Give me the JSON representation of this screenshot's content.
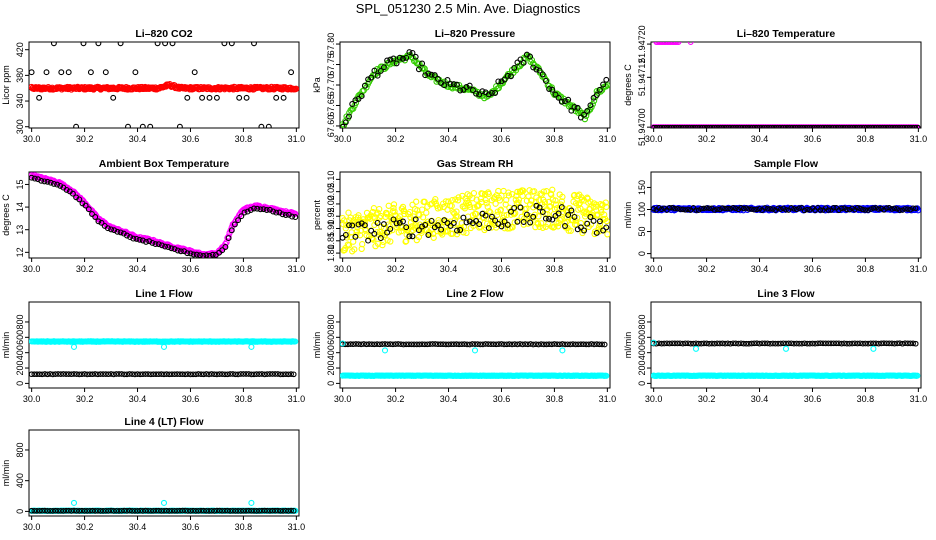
{
  "figure_title": "SPL_051230  2.5 Min. Ave. Diagnostics",
  "chart_data": [
    {
      "id": "co2",
      "type": "scatter",
      "title": "Li–820 CO2",
      "ylabel": "Licor ppm",
      "xlim": [
        29.99,
        31.01
      ],
      "ylim": [
        298,
        432
      ],
      "xticks": [
        "30.0",
        "30.2",
        "30.4",
        "30.6",
        "30.8",
        "31.0"
      ],
      "yticks": [
        {
          "v": 300,
          "l": "300"
        },
        {
          "v": 340,
          "l": "340"
        },
        {
          "v": 380,
          "l": "380"
        },
        {
          "v": 420,
          "l": "420"
        }
      ],
      "series": [
        {
          "name": "raw",
          "color": "#000000",
          "pattern": "levels",
          "levels": [
            300,
            345,
            385,
            430
          ],
          "spacing": 0.028,
          "r": 2.4
        },
        {
          "name": "average",
          "color": "#ff0000",
          "pattern": "flat",
          "base": 360,
          "noise": 2,
          "bump": {
            "x": 30.52,
            "h": 5
          },
          "step": 0.003,
          "r": 2.6
        }
      ]
    },
    {
      "id": "pressure",
      "type": "scatter",
      "title": "Li–820 Pressure",
      "ylabel": "kPa",
      "xlim": [
        29.99,
        31.01
      ],
      "ylim": [
        67.595,
        67.805
      ],
      "xticks": [
        "30.0",
        "30.2",
        "30.4",
        "30.6",
        "30.8",
        "31.0"
      ],
      "yticks": [
        {
          "v": 67.6,
          "l": "67.60"
        },
        {
          "v": 67.65,
          "l": "67.65"
        },
        {
          "v": 67.7,
          "l": "67.70"
        },
        {
          "v": 67.75,
          "l": "67.75"
        },
        {
          "v": 67.8,
          "l": "67.80"
        }
      ],
      "series": [
        {
          "name": "average",
          "color": "#33cc00",
          "pattern": "curve",
          "curve": [
            [
              30.0,
              67.6
            ],
            [
              30.05,
              67.66
            ],
            [
              30.12,
              67.73
            ],
            [
              30.2,
              67.76
            ],
            [
              30.26,
              67.77
            ],
            [
              30.33,
              67.72
            ],
            [
              30.4,
              67.7
            ],
            [
              30.47,
              67.69
            ],
            [
              30.55,
              67.67
            ],
            [
              30.62,
              67.72
            ],
            [
              30.7,
              67.77
            ],
            [
              30.76,
              67.72
            ],
            [
              30.8,
              67.68
            ],
            [
              30.86,
              67.65
            ],
            [
              30.92,
              67.62
            ],
            [
              30.96,
              67.68
            ],
            [
              31.0,
              67.7
            ]
          ],
          "noise": 0.006,
          "step": 0.005,
          "r": 2.6
        },
        {
          "name": "raw",
          "color": "#000000",
          "pattern": "curve",
          "curve": [
            [
              30.0,
              67.6
            ],
            [
              30.05,
              67.66
            ],
            [
              30.12,
              67.73
            ],
            [
              30.2,
              67.76
            ],
            [
              30.26,
              67.77
            ],
            [
              30.33,
              67.72
            ],
            [
              30.4,
              67.7
            ],
            [
              30.47,
              67.69
            ],
            [
              30.55,
              67.67
            ],
            [
              30.62,
              67.72
            ],
            [
              30.7,
              67.77
            ],
            [
              30.76,
              67.72
            ],
            [
              30.8,
              67.68
            ],
            [
              30.86,
              67.65
            ],
            [
              30.92,
              67.62
            ],
            [
              30.96,
              67.68
            ],
            [
              31.0,
              67.72
            ]
          ],
          "noise": 0.012,
          "step": 0.012,
          "r": 2.4
        }
      ]
    },
    {
      "id": "temperature",
      "type": "scatter",
      "title": "Li–820 Temperature",
      "ylabel": "degrees C",
      "xlim": [
        29.99,
        31.01
      ],
      "ylim": [
        51.946998,
        51.947205
      ],
      "xticks": [
        "30.0",
        "30.2",
        "30.4",
        "30.6",
        "30.8",
        "31.0"
      ],
      "yticks": [
        {
          "v": 51.947,
          "l": "51.94700"
        },
        {
          "v": 51.94712,
          "l": "51.94712"
        },
        {
          "v": 51.9472,
          "l": "51.94720"
        }
      ],
      "series": [
        {
          "name": "average",
          "color": "#ff00ff",
          "pattern": "flat",
          "base": 51.947,
          "noise": 0,
          "step": 0.004,
          "r": 2.4
        },
        {
          "name": "raw",
          "color": "#000000",
          "pattern": "flat",
          "base": 51.947,
          "noise": 0,
          "step": 0.009,
          "r": 1.8
        },
        {
          "name": "outliers",
          "color": "#ff00ff",
          "pattern": "range",
          "x0": 30.01,
          "x1": 30.1,
          "base": 51.947205,
          "step": 0.006,
          "r": 2.4
        },
        {
          "name": "outlier-2",
          "color": "#ff00ff",
          "pattern": "range",
          "x0": 30.14,
          "x1": 30.15,
          "base": 51.947205,
          "step": 0.01,
          "r": 2.4
        }
      ]
    },
    {
      "id": "box-temp",
      "type": "scatter",
      "title": "Ambient Box Temperature",
      "ylabel": "degrees C",
      "xlim": [
        29.99,
        31.01
      ],
      "ylim": [
        11.75,
        15.55
      ],
      "xticks": [
        "30.0",
        "30.2",
        "30.4",
        "30.6",
        "30.8",
        "31.0"
      ],
      "yticks": [
        {
          "v": 12,
          "l": "12"
        },
        {
          "v": 13,
          "l": "13"
        },
        {
          "v": 14,
          "l": "14"
        },
        {
          "v": 15,
          "l": "15"
        }
      ],
      "series": [
        {
          "name": "average",
          "color": "#ff00ff",
          "pattern": "curve",
          "curve": [
            [
              30.0,
              15.4
            ],
            [
              30.05,
              15.25
            ],
            [
              30.1,
              15.1
            ],
            [
              30.15,
              14.75
            ],
            [
              30.2,
              14.2
            ],
            [
              30.25,
              13.5
            ],
            [
              30.3,
              13.1
            ],
            [
              30.35,
              12.9
            ],
            [
              30.4,
              12.65
            ],
            [
              30.45,
              12.55
            ],
            [
              30.5,
              12.35
            ],
            [
              30.55,
              12.2
            ],
            [
              30.6,
              12.05
            ],
            [
              30.65,
              11.9
            ],
            [
              30.7,
              11.95
            ],
            [
              30.73,
              12.3
            ],
            [
              30.76,
              13.2
            ],
            [
              30.8,
              13.9
            ],
            [
              30.85,
              14.05
            ],
            [
              30.9,
              13.95
            ],
            [
              30.95,
              13.8
            ],
            [
              31.0,
              13.7
            ]
          ],
          "noise": 0.04,
          "step": 0.004,
          "r": 2.6
        },
        {
          "name": "raw",
          "color": "#000000",
          "pattern": "curve",
          "curve": [
            [
              30.0,
              15.3
            ],
            [
              30.05,
              15.15
            ],
            [
              30.1,
              15.0
            ],
            [
              30.15,
              14.65
            ],
            [
              30.2,
              14.1
            ],
            [
              30.25,
              13.4
            ],
            [
              30.3,
              13.0
            ],
            [
              30.35,
              12.8
            ],
            [
              30.4,
              12.55
            ],
            [
              30.45,
              12.45
            ],
            [
              30.5,
              12.25
            ],
            [
              30.55,
              12.1
            ],
            [
              30.6,
              11.95
            ],
            [
              30.65,
              11.85
            ],
            [
              30.7,
              11.9
            ],
            [
              30.73,
              12.2
            ],
            [
              30.76,
              13.1
            ],
            [
              30.8,
              13.75
            ],
            [
              30.85,
              13.95
            ],
            [
              30.9,
              13.85
            ],
            [
              30.95,
              13.7
            ],
            [
              31.0,
              13.55
            ]
          ],
          "noise": 0.03,
          "step": 0.012,
          "r": 2.4
        }
      ]
    },
    {
      "id": "rh",
      "type": "scatter",
      "title": "Gas Stream RH",
      "ylabel": "percent",
      "xlim": [
        29.99,
        31.01
      ],
      "ylim": [
        1.78,
        2.13
      ],
      "xticks": [
        "30.0",
        "30.2",
        "30.4",
        "30.6",
        "30.8",
        "31.0"
      ],
      "yticks": [
        {
          "v": 1.8,
          "l": "1.80"
        },
        {
          "v": 1.85,
          "l": "1.85"
        },
        {
          "v": 1.9,
          "l": "1.90"
        },
        {
          "v": 1.95,
          "l": "1.95"
        },
        {
          "v": 2.0,
          "l": "2.00"
        },
        {
          "v": 2.05,
          "l": "2.05"
        },
        {
          "v": 2.1,
          "l": "2.10"
        }
      ],
      "series": [
        {
          "name": "average",
          "color": "#ffff00",
          "pattern": "curve",
          "curve": [
            [
              30.0,
              1.88
            ],
            [
              30.2,
              1.92
            ],
            [
              30.4,
              1.95
            ],
            [
              30.6,
              1.98
            ],
            [
              30.8,
              1.98
            ],
            [
              31.0,
              1.94
            ]
          ],
          "noise": 0.08,
          "step": 0.002,
          "r": 2.6
        },
        {
          "name": "raw",
          "color": "#000000",
          "pattern": "curve",
          "curve": [
            [
              30.0,
              1.88
            ],
            [
              30.2,
              1.9
            ],
            [
              30.4,
              1.92
            ],
            [
              30.6,
              1.94
            ],
            [
              30.8,
              1.96
            ],
            [
              31.0,
              1.9
            ]
          ],
          "noise": 0.04,
          "step": 0.012,
          "r": 2.4
        }
      ]
    },
    {
      "id": "sample-flow",
      "type": "scatter",
      "title": "Sample Flow",
      "ylabel": "ml/min",
      "xlim": [
        29.99,
        31.01
      ],
      "ylim": [
        -10,
        185
      ],
      "xticks": [
        "30.0",
        "30.2",
        "30.4",
        "30.6",
        "30.8",
        "31.0"
      ],
      "yticks": [
        {
          "v": 0,
          "l": "0"
        },
        {
          "v": 50,
          "l": "50"
        },
        {
          "v": 100,
          "l": "100"
        },
        {
          "v": 150,
          "l": "150"
        }
      ],
      "series": [
        {
          "name": "average",
          "color": "#0000ff",
          "pattern": "flat",
          "base": 101,
          "noise": 3,
          "step": 0.003,
          "r": 2.5
        },
        {
          "name": "raw",
          "color": "#000000",
          "pattern": "flat",
          "base": 101,
          "noise": 3,
          "step": 0.01,
          "r": 2.2
        }
      ]
    },
    {
      "id": "line1",
      "type": "scatter",
      "title": "Line 1 Flow",
      "ylabel": "ml/min",
      "xlim": [
        29.99,
        31.01
      ],
      "ylim": [
        -60,
        1060
      ],
      "xticks": [
        "30.0",
        "30.2",
        "30.4",
        "30.6",
        "30.8",
        "31.0"
      ],
      "yticks": [
        {
          "v": 0,
          "l": "0"
        },
        {
          "v": 200,
          "l": "200"
        },
        {
          "v": 400,
          "l": "400"
        },
        {
          "v": 600,
          "l": "600"
        },
        {
          "v": 800,
          "l": "800"
        }
      ],
      "series": [
        {
          "name": "average",
          "color": "#00ffff",
          "pattern": "flat",
          "base": 545,
          "noise": 4,
          "step": 0.004,
          "r": 2.5
        },
        {
          "name": "raw",
          "color": "#000000",
          "pattern": "flat",
          "base": 120,
          "noise": 3,
          "step": 0.01,
          "r": 2.3
        },
        {
          "name": "dips",
          "color": "#00ffff",
          "pattern": "points",
          "points": [
            [
              30.16,
              475
            ],
            [
              30.5,
              475
            ],
            [
              30.83,
              475
            ]
          ],
          "r": 2.5
        }
      ]
    },
    {
      "id": "line2",
      "type": "scatter",
      "title": "Line 2 Flow",
      "ylabel": "ml/min",
      "xlim": [
        29.99,
        31.01
      ],
      "ylim": [
        -60,
        1060
      ],
      "xticks": [
        "30.0",
        "30.2",
        "30.4",
        "30.6",
        "30.8",
        "31.0"
      ],
      "yticks": [
        {
          "v": 0,
          "l": "0"
        },
        {
          "v": 200,
          "l": "200"
        },
        {
          "v": 400,
          "l": "400"
        },
        {
          "v": 600,
          "l": "600"
        },
        {
          "v": 800,
          "l": "800"
        }
      ],
      "series": [
        {
          "name": "average",
          "color": "#00ffff",
          "pattern": "flat",
          "base": 100,
          "noise": 3,
          "step": 0.004,
          "r": 2.5
        },
        {
          "name": "raw",
          "color": "#000000",
          "pattern": "flat",
          "base": 510,
          "noise": 3,
          "step": 0.01,
          "r": 2.3
        },
        {
          "name": "dips",
          "color": "#00ffff",
          "pattern": "points",
          "points": [
            [
              30.0,
              520
            ],
            [
              30.16,
              430
            ],
            [
              30.5,
              430
            ],
            [
              30.83,
              430
            ]
          ],
          "r": 2.5
        }
      ]
    },
    {
      "id": "line3",
      "type": "scatter",
      "title": "Line 3 Flow",
      "ylabel": "ml/min",
      "xlim": [
        29.99,
        31.01
      ],
      "ylim": [
        -60,
        1060
      ],
      "xticks": [
        "30.0",
        "30.2",
        "30.4",
        "30.6",
        "30.8",
        "31.0"
      ],
      "yticks": [
        {
          "v": 0,
          "l": "0"
        },
        {
          "v": 200,
          "l": "200"
        },
        {
          "v": 400,
          "l": "400"
        },
        {
          "v": 600,
          "l": "600"
        },
        {
          "v": 800,
          "l": "800"
        }
      ],
      "series": [
        {
          "name": "average",
          "color": "#00ffff",
          "pattern": "flat",
          "base": 100,
          "noise": 3,
          "step": 0.004,
          "r": 2.5
        },
        {
          "name": "raw",
          "color": "#000000",
          "pattern": "flat",
          "base": 520,
          "noise": 3,
          "step": 0.01,
          "r": 2.3
        },
        {
          "name": "dips",
          "color": "#00ffff",
          "pattern": "points",
          "points": [
            [
              30.0,
              530
            ],
            [
              30.16,
              450
            ],
            [
              30.5,
              450
            ],
            [
              30.83,
              450
            ]
          ],
          "r": 2.5
        }
      ]
    },
    {
      "id": "line4",
      "type": "scatter",
      "title": "Line 4 (LT) Flow",
      "ylabel": "ml/min",
      "xlim": [
        29.99,
        31.01
      ],
      "ylim": [
        -60,
        1060
      ],
      "xticks": [
        "30.0",
        "30.2",
        "30.4",
        "30.6",
        "30.8",
        "31.0"
      ],
      "yticks": [
        {
          "v": 0,
          "l": "0"
        },
        {
          "v": 400,
          "l": "400"
        },
        {
          "v": 800,
          "l": "800"
        }
      ],
      "series": [
        {
          "name": "average",
          "color": "#00ffff",
          "pattern": "flat",
          "base": 8,
          "noise": 2,
          "step": 0.004,
          "r": 2.5
        },
        {
          "name": "raw",
          "color": "#000000",
          "pattern": "flat",
          "base": 8,
          "noise": 2,
          "step": 0.01,
          "r": 2.3
        },
        {
          "name": "spikes",
          "color": "#00ffff",
          "pattern": "points",
          "points": [
            [
              30.16,
              110
            ],
            [
              30.5,
              110
            ],
            [
              30.83,
              110
            ]
          ],
          "r": 2.5
        }
      ]
    }
  ]
}
